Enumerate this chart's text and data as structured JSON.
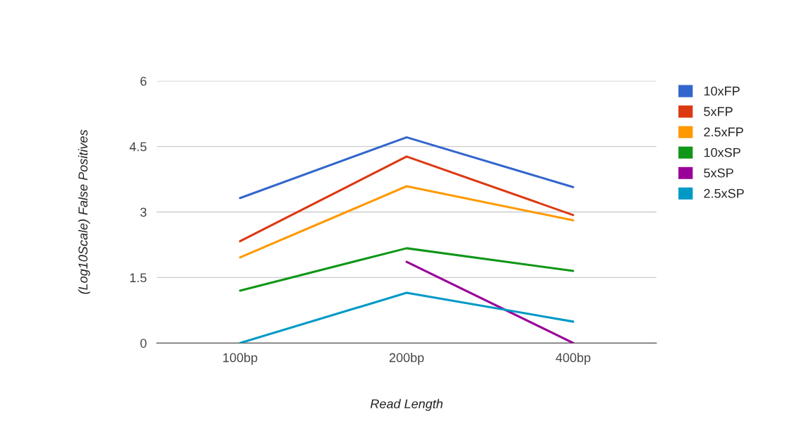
{
  "chart_data": {
    "type": "line",
    "xlabel": "Read Length",
    "ylabel": "(Log10Scale) False Positives",
    "categories": [
      "100bp",
      "200bp",
      "400bp"
    ],
    "series": [
      {
        "name": "10xFP",
        "color": "#3366cc",
        "values": [
          3.32,
          4.71,
          3.57
        ]
      },
      {
        "name": "5xFP",
        "color": "#dc3912",
        "values": [
          2.33,
          4.27,
          2.93
        ]
      },
      {
        "name": "2.5xFP",
        "color": "#ff9900",
        "values": [
          1.96,
          3.59,
          2.81
        ]
      },
      {
        "name": "10xSP",
        "color": "#109618",
        "values": [
          1.2,
          2.17,
          1.65
        ]
      },
      {
        "name": "5xSP",
        "color": "#990099",
        "values": [
          null,
          1.86,
          0
        ]
      },
      {
        "name": "2.5xSP",
        "color": "#0099c6",
        "values": [
          0,
          1.15,
          0.49
        ]
      }
    ],
    "ylim": [
      0,
      6
    ],
    "yticks": [
      0,
      1.5,
      3,
      4.5,
      6
    ],
    "grid": "y",
    "legend": "top right",
    "marker": "none",
    "line_style": "solid"
  }
}
